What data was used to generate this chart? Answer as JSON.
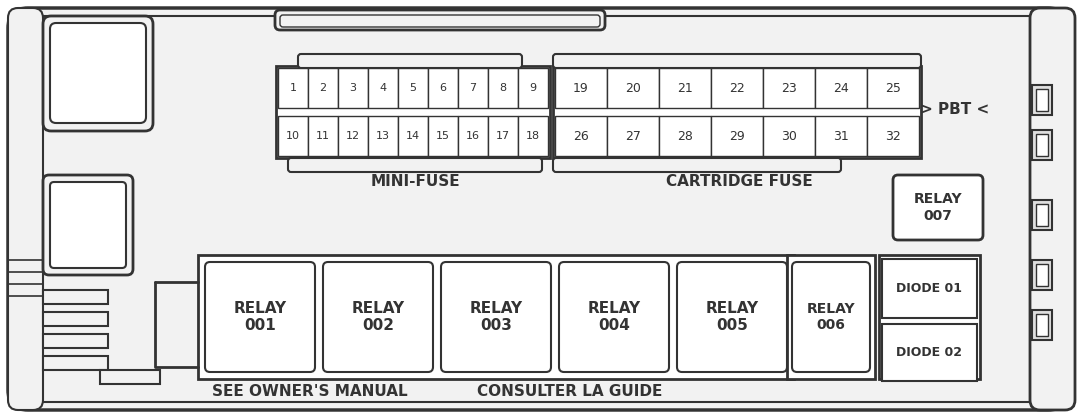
{
  "bg_color": "#ffffff",
  "line_color": "#333333",
  "white": "#ffffff",
  "gray_bg": "#e8e8e8",
  "mini_fuse_row1": [
    "1",
    "2",
    "3",
    "4",
    "5",
    "6",
    "7",
    "8",
    "9"
  ],
  "mini_fuse_row2": [
    "10",
    "11",
    "12",
    "13",
    "14",
    "15",
    "16",
    "17",
    "18"
  ],
  "cartridge_row1": [
    "19",
    "20",
    "21",
    "22",
    "23",
    "24",
    "25"
  ],
  "cartridge_row2": [
    "26",
    "27",
    "28",
    "29",
    "30",
    "31",
    "32"
  ],
  "relays_main": [
    "RELAY\n001",
    "RELAY\n002",
    "RELAY\n003",
    "RELAY\n004",
    "RELAY\n005"
  ],
  "relay006": "RELAY\n006",
  "relay007": "RELAY\n007",
  "diode01": "DIODE 01",
  "diode02": "DIODE 02",
  "pbt_label": "> PBT <",
  "mini_fuse_label": "MINI-FUSE",
  "cartridge_label": "CARTRIDGE FUSE",
  "bottom_left": "SEE OWNER'S MANUAL",
  "bottom_right": "CONSULTER LA GUIDE"
}
